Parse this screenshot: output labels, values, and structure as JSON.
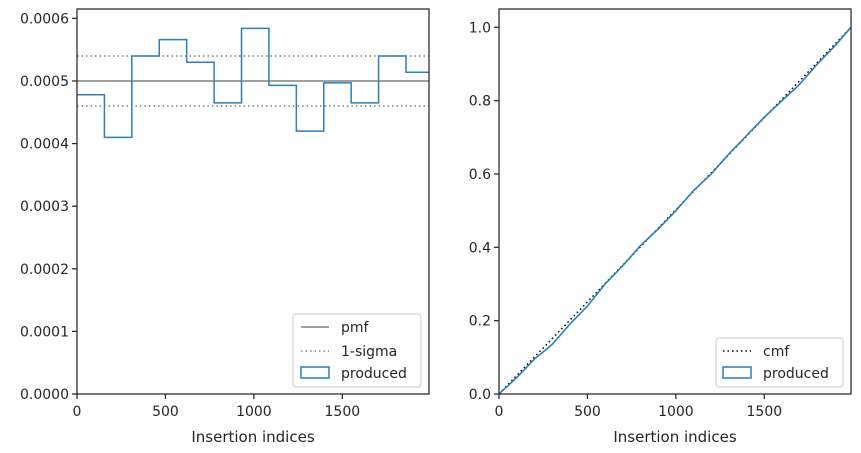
{
  "chart_data": [
    {
      "type": "step",
      "xlabel": "Insertion indices",
      "ylabel": "",
      "xlim": [
        0,
        1990
      ],
      "ylim": [
        0,
        0.000615
      ],
      "xticks": [
        0,
        500,
        1000,
        1500
      ],
      "xtick_labels": [
        "0",
        "500",
        "1000",
        "1500"
      ],
      "yticks": [
        0,
        0.0001,
        0.0002,
        0.0003,
        0.0004,
        0.0005,
        0.0006
      ],
      "ytick_labels": [
        "0.0000",
        "0.0001",
        "0.0002",
        "0.0003",
        "0.0004",
        "0.0005",
        "0.0006"
      ],
      "grid": false,
      "legend_position": "lower-right",
      "series": [
        {
          "name": "pmf",
          "kind": "hline",
          "y": 0.0005,
          "color": "#808080",
          "style": "solid"
        },
        {
          "name": "1-sigma",
          "kind": "hlines",
          "y": [
            0.00054,
            0.00046
          ],
          "color": "#808080",
          "style": "dotted"
        },
        {
          "name": "produced",
          "kind": "histogram-step",
          "color": "#2f7fb0",
          "bin_edges": [
            0,
            155,
            310,
            465,
            620,
            775,
            930,
            1085,
            1240,
            1395,
            1550,
            1705,
            1860,
            1990
          ],
          "values": [
            0.000478,
            0.00041,
            0.00054,
            0.000566,
            0.00053,
            0.000465,
            0.000584,
            0.000493,
            0.00042,
            0.000497,
            0.000465,
            0.00054,
            0.000514
          ]
        }
      ]
    },
    {
      "type": "line",
      "xlabel": "Insertion indices",
      "ylabel": "",
      "xlim": [
        0,
        1990
      ],
      "ylim": [
        0,
        1.05
      ],
      "xticks": [
        0,
        500,
        1000,
        1500
      ],
      "xtick_labels": [
        "0",
        "500",
        "1000",
        "1500"
      ],
      "yticks": [
        0,
        0.2,
        0.4,
        0.6,
        0.8,
        1.0
      ],
      "ytick_labels": [
        "0.0",
        "0.2",
        "0.4",
        "0.6",
        "0.8",
        "1.0"
      ],
      "grid": false,
      "legend_position": "lower-right",
      "series": [
        {
          "name": "cmf",
          "kind": "line",
          "color": "#000000",
          "style": "dotted",
          "x": [
            0,
            1990
          ],
          "y": [
            0,
            1.0
          ]
        },
        {
          "name": "produced",
          "kind": "step-line",
          "color": "#2f7fb0",
          "x": [
            0,
            100,
            200,
            300,
            400,
            500,
            600,
            700,
            800,
            900,
            1000,
            1100,
            1200,
            1300,
            1400,
            1500,
            1600,
            1700,
            1800,
            1900,
            1990
          ],
          "y": [
            0,
            0.045,
            0.095,
            0.135,
            0.19,
            0.24,
            0.3,
            0.35,
            0.405,
            0.45,
            0.5,
            0.555,
            0.6,
            0.655,
            0.705,
            0.755,
            0.8,
            0.845,
            0.9,
            0.95,
            1.0
          ]
        }
      ]
    }
  ]
}
